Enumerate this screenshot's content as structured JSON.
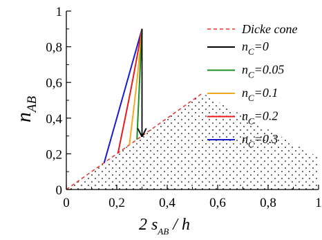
{
  "chart_data": {
    "type": "line",
    "xlabel": {
      "prefix": "2 s",
      "sub": "AB",
      "suffix": " / h"
    },
    "ylabel": {
      "main": "n",
      "sub": "AB"
    },
    "xlim": [
      0,
      1
    ],
    "ylim": [
      0,
      1
    ],
    "xticks": [
      0,
      0.2,
      0.4,
      0.6,
      0.8,
      1
    ],
    "xtick_labels": [
      "0",
      "0,2",
      "0,4",
      "0,6",
      "0,8",
      "1"
    ],
    "yticks": [
      0,
      0.2,
      0.4,
      0.6,
      0.8,
      1
    ],
    "ytick_labels": [
      "0",
      "0,2",
      "0,4",
      "0,6",
      "0,8",
      "1"
    ],
    "grid": false,
    "legend_position": "right",
    "dicke_cone": {
      "label": "Dicke cone",
      "color": "#e8322a",
      "x": [
        0,
        0.54
      ],
      "y": [
        0,
        0.54
      ]
    },
    "forbidden_region": {
      "pattern": "dotted",
      "x": [
        0,
        0.54,
        1,
        1
      ],
      "y": [
        0,
        0.54,
        0.18,
        0
      ]
    },
    "series": [
      {
        "name_main": "n",
        "name_sub": "C",
        "name_value": "=0",
        "color": "#000000",
        "x": [
          0.3,
          0.3
        ],
        "y": [
          0.9,
          0.3
        ],
        "arrow": true
      },
      {
        "name_main": "n",
        "name_sub": "C",
        "name_value": "=0.05",
        "color": "#1e8f1e",
        "x": [
          0.3,
          0.29,
          0.28
        ],
        "y": [
          0.9,
          0.6,
          0.28
        ]
      },
      {
        "name_main": "n",
        "name_sub": "C",
        "name_value": "=0.1",
        "color": "#f5a623",
        "x": [
          0.3,
          0.28,
          0.25
        ],
        "y": [
          0.9,
          0.6,
          0.25
        ]
      },
      {
        "name_main": "n",
        "name_sub": "C",
        "name_value": "=0.2",
        "color": "#e8191a",
        "x": [
          0.3,
          0.262,
          0.205
        ],
        "y": [
          0.9,
          0.6,
          0.205
        ]
      },
      {
        "name_main": "n",
        "name_sub": "C",
        "name_value": "=0.3",
        "color": "#1a1acd",
        "x": [
          0.3,
          0.24,
          0.2,
          0.15
        ],
        "y": [
          0.9,
          0.6,
          0.4,
          0.15
        ]
      }
    ]
  }
}
